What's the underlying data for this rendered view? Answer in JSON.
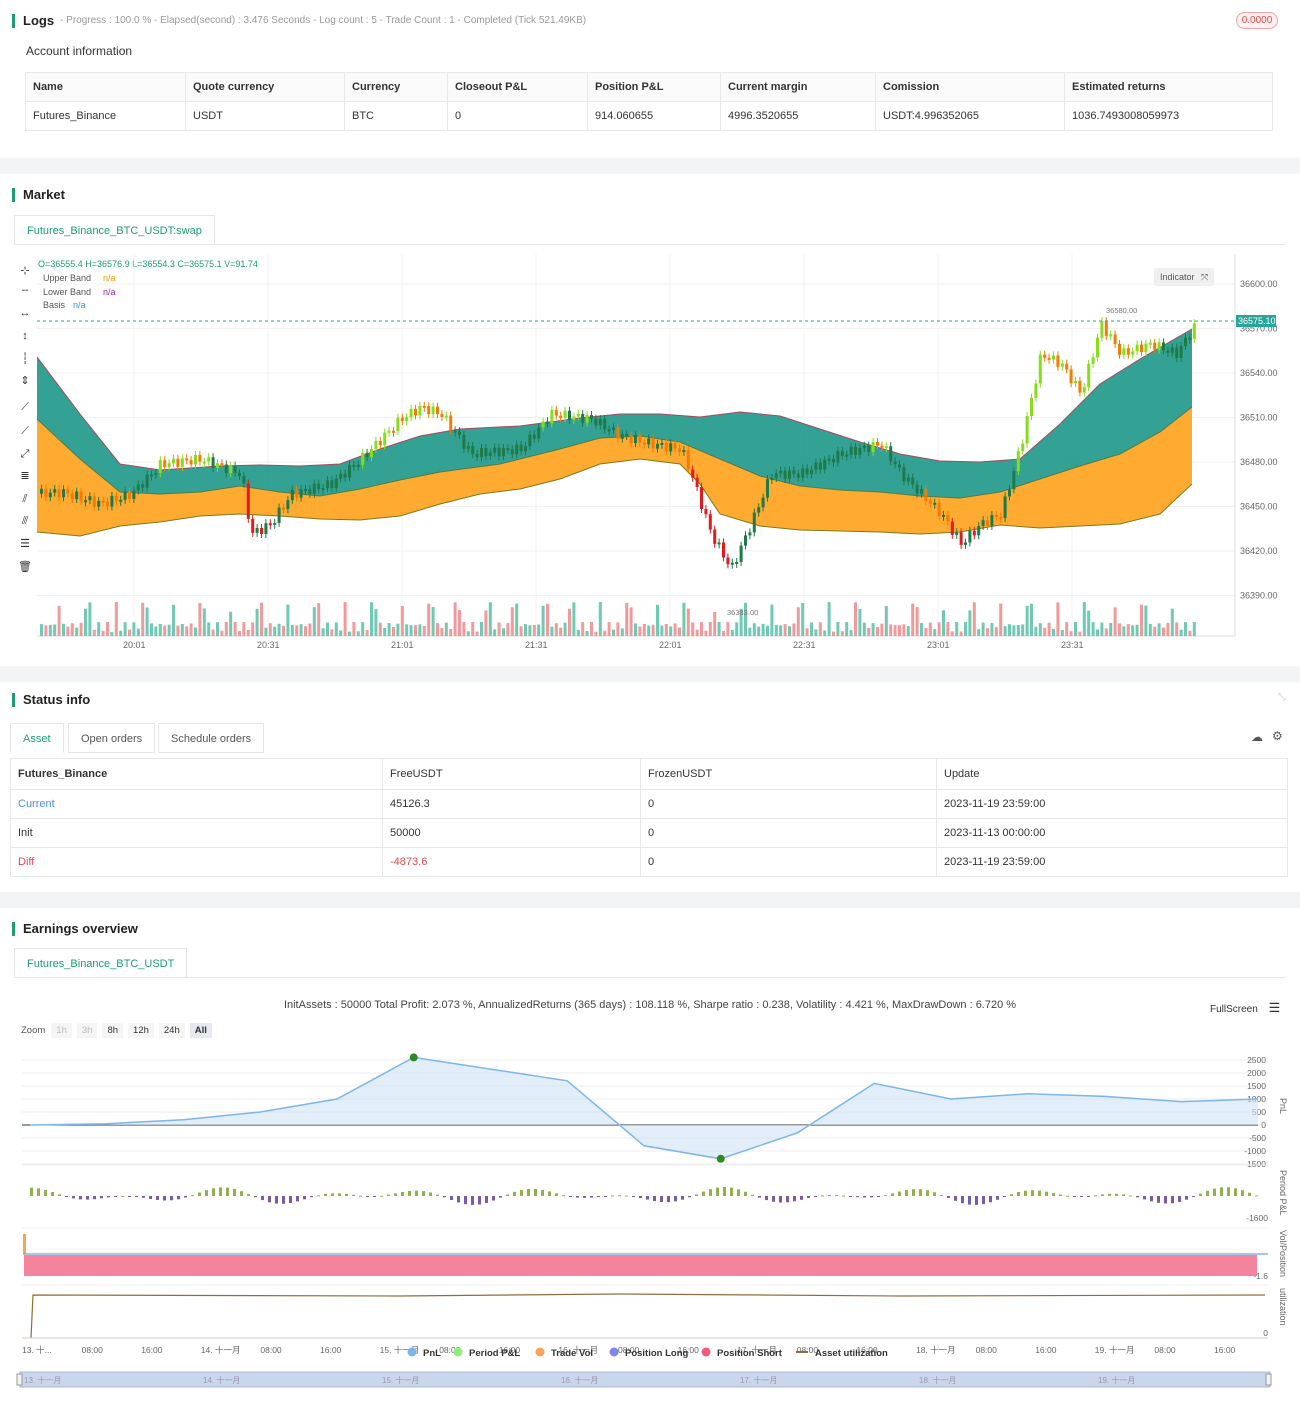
{
  "logs": {
    "title": "Logs",
    "meta": "- Progress : 100.0 % - Elapsed(second) : 3.476  Seconds - Log count : 5 - Trade Count : 1 - Completed (Tick 521.49KB)",
    "badge": "0.0000"
  },
  "account": {
    "title": "Account information",
    "headers": [
      "Name",
      "Quote currency",
      "Currency",
      "Closeout P&L",
      "Position P&L",
      "Current margin",
      "Comission",
      "Estimated returns"
    ],
    "row": [
      "Futures_Binance",
      "USDT",
      "BTC",
      "0",
      "914.060655",
      "4996.3520655",
      "USDT:4.996352065",
      "1036.7493008059973"
    ]
  },
  "market": {
    "title": "Market",
    "tab": "Futures_Binance_BTC_USDT:swap",
    "ohlc": "O=36555.4 H=36576.9 L=36554.3 C=36575.1 V=91.74",
    "legend": [
      {
        "name": "Upper Band",
        "value": "n/a",
        "color": "#ff9800"
      },
      {
        "name": "Lower Band",
        "value": "n/a",
        "color": "#9c27b0"
      },
      {
        "name": "Basis",
        "value": "n/a",
        "color": "#2196f3"
      }
    ],
    "indicator_button": "Indicator",
    "price_ticks": [
      "36600.00",
      "36570.00",
      "36540.00",
      "36510.00",
      "36480.00",
      "36450.00",
      "36420.00",
      "36390.00"
    ],
    "time_ticks": [
      "20:01",
      "20:31",
      "21:01",
      "21:31",
      "22:01",
      "22:31",
      "23:01",
      "23:31"
    ],
    "last_price": "36575.10",
    "high_label": "36580.00",
    "low_label": "36383.00"
  },
  "status": {
    "title": "Status info",
    "tabs": [
      "Asset",
      "Open orders",
      "Schedule orders"
    ],
    "headers": [
      "Futures_Binance",
      "FreeUSDT",
      "FrozenUSDT",
      "Update"
    ],
    "rows": [
      {
        "label": "Current",
        "free": "45126.3",
        "frozen": "0",
        "update": "2023-11-19 23:59:00"
      },
      {
        "label": "Init",
        "free": "50000",
        "frozen": "0",
        "update": "2023-11-13 00:00:00"
      },
      {
        "label": "Diff",
        "free": "-4873.6",
        "frozen": "0",
        "update": "2023-11-19 23:59:00"
      }
    ]
  },
  "earnings": {
    "title": "Earnings overview",
    "tab": "Futures_Binance_BTC_USDT",
    "summary": "InitAssets : 50000 Total Profit: 2.073 %, AnnualizedReturns (365 days) : 108.118 %, Sharpe ratio : 0.238, Volatility : 4.421 %, MaxDrawDown : 6.720 %",
    "fullscreen": "FullScreen",
    "zoom_label": "Zoom",
    "zoom_buttons": [
      "1h",
      "3h",
      "8h",
      "12h",
      "24h",
      "All"
    ],
    "pnl_ticks": [
      "2500",
      "2000",
      "1500",
      "1000",
      "500",
      "0",
      "-500",
      "-1000",
      "-1500"
    ],
    "period_tick": "-1600",
    "vol_tick": "-1.6",
    "util_tick": "0",
    "axis_titles": [
      "PnL",
      "Period P&L",
      "Vol/Position",
      "utilization"
    ],
    "x_ticks": [
      "13. 十...",
      "08:00",
      "16:00",
      "14. 十一月",
      "08:00",
      "16:00",
      "15. 十一月",
      "08:00",
      "16:00",
      "16. 十一月",
      "08:00",
      "16:00",
      "17. 十一月",
      "08:00",
      "16:00",
      "18. 十一月",
      "08:00",
      "16:00",
      "19. 十一月",
      "08:00",
      "16:00"
    ],
    "legend": [
      {
        "name": "PnL",
        "color": "#7cb5ec"
      },
      {
        "name": "Period P&L",
        "color": "#90ed7d"
      },
      {
        "name": "Trade Vol",
        "color": "#f7a35c"
      },
      {
        "name": "Position Long",
        "color": "#8085e9"
      },
      {
        "name": "Position Short",
        "color": "#f15c80"
      },
      {
        "name": "Asset utilization",
        "color": "#8d6e3a"
      }
    ],
    "navigator_ticks": [
      "13. 十一月",
      "14. 十一月",
      "15. 十一月",
      "16. 十一月",
      "17. 十一月",
      "18. 十一月",
      "19. 十一月"
    ]
  },
  "chart_data": {
    "type": "line",
    "x": [
      "11-13 00:00",
      "11-13 12:00",
      "11-14 00:00",
      "11-14 12:00",
      "11-15 00:00",
      "11-15 06:00",
      "11-15 12:00",
      "11-16 00:00",
      "11-16 06:00",
      "11-16 12:00",
      "11-17 00:00",
      "11-17 12:00",
      "11-18 00:00",
      "11-18 12:00",
      "11-19 00:00",
      "11-19 12:00",
      "11-19 23:59"
    ],
    "series": [
      {
        "name": "PnL",
        "values": [
          0,
          50,
          200,
          500,
          1000,
          2600,
          2150,
          1700,
          -800,
          -1300,
          -300,
          1600,
          1000,
          1200,
          1100,
          900,
          1000
        ]
      }
    ],
    "ylim": [
      -1500,
      2500
    ]
  }
}
